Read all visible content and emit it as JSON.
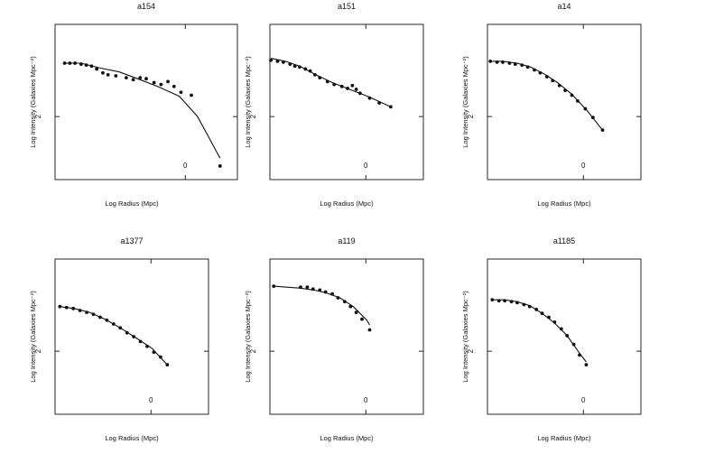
{
  "chart_data": [
    {
      "type": "scatter",
      "title": "a154",
      "xlabel": "Log Radius (Mpc)",
      "ylabel": "Log Intensity (Galaxies Mpc⁻²)",
      "xlim": [
        -1.5,
        0.6
      ],
      "ylim": [
        1.35,
        2.95
      ],
      "xticks": [
        {
          "value": 0,
          "label": "0"
        }
      ],
      "yticks": [
        {
          "value": 2,
          "label": "2"
        }
      ],
      "points": [
        [
          -1.39,
          2.55
        ],
        [
          -1.33,
          2.55
        ],
        [
          -1.27,
          2.55
        ],
        [
          -1.2,
          2.54
        ],
        [
          -1.14,
          2.53
        ],
        [
          -1.08,
          2.52
        ],
        [
          -1.02,
          2.49
        ],
        [
          -0.95,
          2.45
        ],
        [
          -0.89,
          2.43
        ],
        [
          -0.8,
          2.42
        ],
        [
          -0.68,
          2.4
        ],
        [
          -0.6,
          2.38
        ],
        [
          -0.52,
          2.4
        ],
        [
          -0.45,
          2.39
        ],
        [
          -0.36,
          2.35
        ],
        [
          -0.28,
          2.33
        ],
        [
          -0.2,
          2.36
        ],
        [
          -0.13,
          2.31
        ],
        [
          -0.05,
          2.25
        ],
        [
          0.07,
          2.22
        ],
        [
          0.4,
          1.49
        ]
      ],
      "curve": [
        [
          -1.39,
          2.55
        ],
        [
          -1.2,
          2.55
        ],
        [
          -0.98,
          2.5
        ],
        [
          -0.76,
          2.46
        ],
        [
          -0.52,
          2.38
        ],
        [
          -0.32,
          2.31
        ],
        [
          -0.07,
          2.21
        ],
        [
          0.14,
          2.0
        ],
        [
          0.4,
          1.57
        ]
      ]
    },
    {
      "type": "scatter",
      "title": "a151",
      "xlabel": "Log Radius (Mpc)",
      "ylabel": "Log Intensity (Galaxies Mpc⁻²)",
      "xlim": [
        -1.0,
        0.6
      ],
      "ylim": [
        1.35,
        2.95
      ],
      "xticks": [
        {
          "value": 0,
          "label": "0"
        }
      ],
      "yticks": [
        {
          "value": 2,
          "label": "2"
        }
      ],
      "points": [
        [
          -0.99,
          2.58
        ],
        [
          -0.92,
          2.57
        ],
        [
          -0.86,
          2.56
        ],
        [
          -0.79,
          2.54
        ],
        [
          -0.74,
          2.52
        ],
        [
          -0.69,
          2.51
        ],
        [
          -0.63,
          2.49
        ],
        [
          -0.58,
          2.47
        ],
        [
          -0.53,
          2.43
        ],
        [
          -0.48,
          2.4
        ],
        [
          -0.4,
          2.36
        ],
        [
          -0.33,
          2.33
        ],
        [
          -0.25,
          2.31
        ],
        [
          -0.19,
          2.29
        ],
        [
          -0.14,
          2.32
        ],
        [
          -0.1,
          2.28
        ],
        [
          -0.06,
          2.24
        ],
        [
          0.04,
          2.19
        ],
        [
          0.14,
          2.14
        ],
        [
          0.26,
          2.1
        ]
      ],
      "curve": [
        [
          -0.99,
          2.6
        ],
        [
          -0.84,
          2.57
        ],
        [
          -0.69,
          2.52
        ],
        [
          -0.52,
          2.43
        ],
        [
          -0.35,
          2.35
        ],
        [
          -0.17,
          2.28
        ],
        [
          0.04,
          2.2
        ],
        [
          0.26,
          2.1
        ]
      ]
    },
    {
      "type": "scatter",
      "title": "a14",
      "xlabel": "Log Radius (Mpc)",
      "ylabel": "Log Intensity (Galaxies Mpc⁻²)",
      "xlim": [
        -1.0,
        0.6
      ],
      "ylim": [
        1.35,
        2.95
      ],
      "xticks": [
        {
          "value": 0,
          "label": "0"
        }
      ],
      "yticks": [
        {
          "value": 2,
          "label": "2"
        }
      ],
      "points": [
        [
          -0.97,
          2.57
        ],
        [
          -0.9,
          2.56
        ],
        [
          -0.84,
          2.56
        ],
        [
          -0.77,
          2.55
        ],
        [
          -0.71,
          2.54
        ],
        [
          -0.64,
          2.53
        ],
        [
          -0.58,
          2.51
        ],
        [
          -0.51,
          2.48
        ],
        [
          -0.45,
          2.45
        ],
        [
          -0.38,
          2.41
        ],
        [
          -0.32,
          2.37
        ],
        [
          -0.25,
          2.32
        ],
        [
          -0.19,
          2.27
        ],
        [
          -0.12,
          2.22
        ],
        [
          -0.06,
          2.16
        ],
        [
          0.02,
          2.08
        ],
        [
          0.1,
          1.99
        ],
        [
          0.2,
          1.86
        ]
      ],
      "curve": [
        [
          -0.97,
          2.57
        ],
        [
          -0.84,
          2.57
        ],
        [
          -0.69,
          2.55
        ],
        [
          -0.55,
          2.51
        ],
        [
          -0.41,
          2.44
        ],
        [
          -0.27,
          2.35
        ],
        [
          -0.12,
          2.23
        ],
        [
          0.04,
          2.06
        ],
        [
          0.2,
          1.86
        ]
      ]
    },
    {
      "type": "scatter",
      "title": "a1377",
      "xlabel": "Log Radius (Mpc)",
      "ylabel": "Log Intensity (Galaxies Mpc⁻²)",
      "xlim": [
        -1.0,
        0.6
      ],
      "ylim": [
        1.35,
        2.95
      ],
      "xticks": [
        {
          "value": 0,
          "label": "0"
        }
      ],
      "yticks": [
        {
          "value": 2,
          "label": "2"
        }
      ],
      "points": [
        [
          -0.95,
          2.46
        ],
        [
          -0.88,
          2.45
        ],
        [
          -0.81,
          2.44
        ],
        [
          -0.74,
          2.42
        ],
        [
          -0.67,
          2.4
        ],
        [
          -0.6,
          2.38
        ],
        [
          -0.53,
          2.35
        ],
        [
          -0.46,
          2.32
        ],
        [
          -0.39,
          2.28
        ],
        [
          -0.32,
          2.24
        ],
        [
          -0.25,
          2.19
        ],
        [
          -0.18,
          2.15
        ],
        [
          -0.11,
          2.1
        ],
        [
          -0.04,
          2.05
        ],
        [
          0.03,
          1.99
        ],
        [
          0.1,
          1.94
        ],
        [
          0.17,
          1.86
        ]
      ],
      "curve": [
        [
          -0.95,
          2.46
        ],
        [
          -0.8,
          2.44
        ],
        [
          -0.64,
          2.4
        ],
        [
          -0.48,
          2.33
        ],
        [
          -0.32,
          2.24
        ],
        [
          -0.16,
          2.14
        ],
        [
          0.01,
          2.03
        ],
        [
          0.17,
          1.86
        ]
      ]
    },
    {
      "type": "scatter",
      "title": "a119",
      "xlabel": "Log Radius (Mpc)",
      "ylabel": "Log Intensity (Galaxies Mpc⁻²)",
      "xlim": [
        -1.0,
        0.6
      ],
      "ylim": [
        1.35,
        2.95
      ],
      "xticks": [
        {
          "value": 0,
          "label": "0"
        }
      ],
      "yticks": [
        {
          "value": 2,
          "label": "2"
        }
      ],
      "points": [
        [
          -0.96,
          2.67
        ],
        [
          -0.68,
          2.66
        ],
        [
          -0.61,
          2.66
        ],
        [
          -0.55,
          2.64
        ],
        [
          -0.48,
          2.63
        ],
        [
          -0.42,
          2.61
        ],
        [
          -0.35,
          2.59
        ],
        [
          -0.29,
          2.55
        ],
        [
          -0.22,
          2.51
        ],
        [
          -0.16,
          2.46
        ],
        [
          -0.1,
          2.4
        ],
        [
          -0.04,
          2.33
        ],
        [
          0.04,
          2.22
        ]
      ],
      "curve": [
        [
          -0.96,
          2.67
        ],
        [
          -0.82,
          2.66
        ],
        [
          -0.68,
          2.65
        ],
        [
          -0.54,
          2.63
        ],
        [
          -0.41,
          2.6
        ],
        [
          -0.27,
          2.55
        ],
        [
          -0.13,
          2.46
        ],
        [
          0.01,
          2.32
        ],
        [
          0.04,
          2.27
        ]
      ]
    },
    {
      "type": "scatter",
      "title": "a1185",
      "xlabel": "Log Radius (Mpc)",
      "ylabel": "Log Intensity (Galaxies Mpc⁻²)",
      "xlim": [
        -1.0,
        0.6
      ],
      "ylim": [
        1.35,
        2.95
      ],
      "xticks": [
        {
          "value": 0,
          "label": "0"
        }
      ],
      "yticks": [
        {
          "value": 2,
          "label": "2"
        }
      ],
      "points": [
        [
          -0.95,
          2.53
        ],
        [
          -0.88,
          2.52
        ],
        [
          -0.82,
          2.52
        ],
        [
          -0.75,
          2.51
        ],
        [
          -0.69,
          2.5
        ],
        [
          -0.62,
          2.48
        ],
        [
          -0.56,
          2.46
        ],
        [
          -0.49,
          2.43
        ],
        [
          -0.43,
          2.39
        ],
        [
          -0.36,
          2.35
        ],
        [
          -0.3,
          2.3
        ],
        [
          -0.23,
          2.23
        ],
        [
          -0.17,
          2.16
        ],
        [
          -0.1,
          2.07
        ],
        [
          -0.04,
          1.96
        ],
        [
          0.03,
          1.86
        ]
      ],
      "curve": [
        [
          -0.95,
          2.53
        ],
        [
          -0.82,
          2.53
        ],
        [
          -0.69,
          2.51
        ],
        [
          -0.56,
          2.47
        ],
        [
          -0.43,
          2.39
        ],
        [
          -0.3,
          2.29
        ],
        [
          -0.17,
          2.16
        ],
        [
          -0.04,
          1.98
        ],
        [
          0.03,
          1.89
        ]
      ]
    }
  ]
}
